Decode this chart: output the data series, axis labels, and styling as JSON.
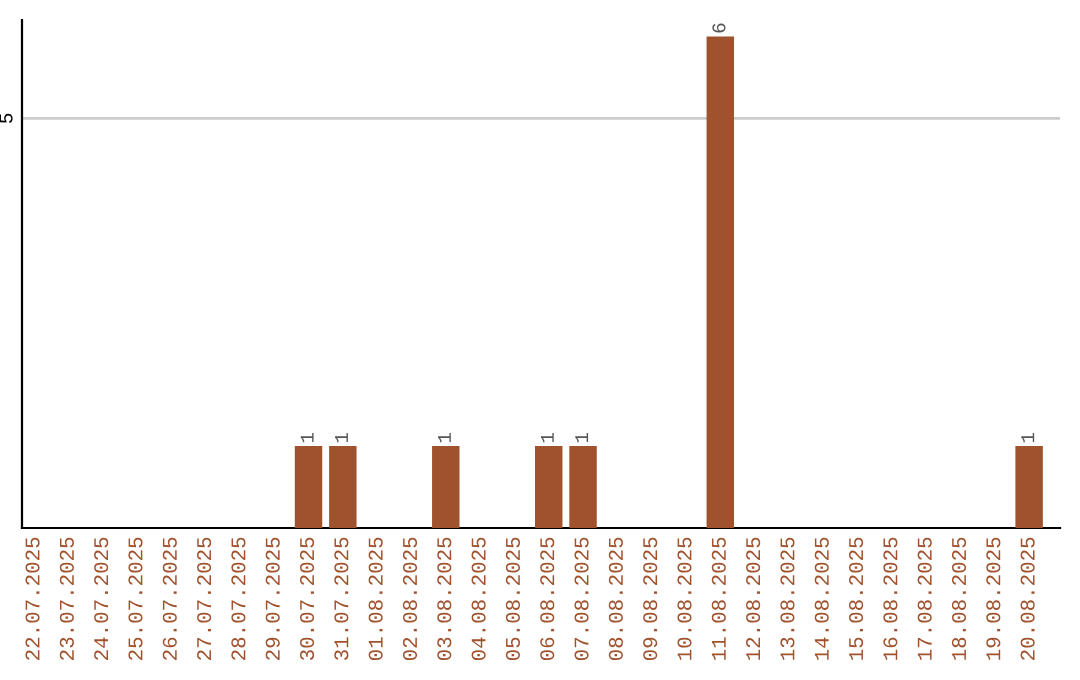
{
  "chart_data": {
    "type": "bar",
    "categories": [
      "22.07.2025",
      "23.07.2025",
      "24.07.2025",
      "25.07.2025",
      "26.07.2025",
      "27.07.2025",
      "28.07.2025",
      "29.07.2025",
      "30.07.2025",
      "31.07.2025",
      "01.08.2025",
      "02.08.2025",
      "03.08.2025",
      "04.08.2025",
      "05.08.2025",
      "06.08.2025",
      "07.08.2025",
      "08.08.2025",
      "09.08.2025",
      "10.08.2025",
      "11.08.2025",
      "12.08.2025",
      "13.08.2025",
      "14.08.2025",
      "15.08.2025",
      "16.08.2025",
      "17.08.2025",
      "18.08.2025",
      "19.08.2025",
      "20.08.2025"
    ],
    "values": [
      0,
      0,
      0,
      0,
      0,
      0,
      0,
      0,
      1,
      1,
      0,
      0,
      1,
      0,
      0,
      1,
      1,
      0,
      0,
      0,
      6,
      0,
      0,
      0,
      0,
      0,
      0,
      0,
      0,
      1
    ],
    "value_labels": [
      null,
      null,
      null,
      null,
      null,
      null,
      null,
      null,
      "1",
      "1",
      null,
      null,
      "1",
      null,
      null,
      "1",
      "1",
      null,
      null,
      null,
      "6",
      null,
      null,
      null,
      null,
      null,
      null,
      null,
      null,
      "1"
    ],
    "color": "#a0522d",
    "ylim": [
      0,
      6.2
    ],
    "yticks": [
      5
    ],
    "grid": "y"
  }
}
